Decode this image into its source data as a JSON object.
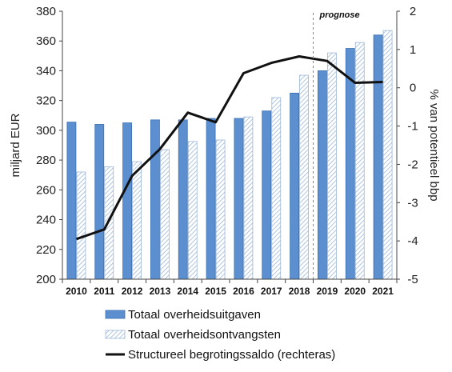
{
  "chart_data": {
    "type": "bar",
    "categories": [
      "2010",
      "2011",
      "2012",
      "2013",
      "2014",
      "2015",
      "2016",
      "2017",
      "2018",
      "2019",
      "2020",
      "2021"
    ],
    "ylabel": "miljard EUR",
    "y2label": "% van potentieel bbp",
    "ylim": [
      200,
      380
    ],
    "y2lim": [
      -5,
      2
    ],
    "yticks": [
      200,
      220,
      240,
      260,
      280,
      300,
      320,
      340,
      360,
      380
    ],
    "y2ticks": [
      -5,
      -4,
      -3,
      -2,
      -1,
      0,
      1,
      2
    ],
    "annotation": "prognose",
    "forecast_start": "2019",
    "series": [
      {
        "name": "Totaal overheidsuitgaven",
        "kind": "bar",
        "style": "solid",
        "color": "#5b8fcf",
        "values": [
          305.5,
          304,
          305,
          307,
          307,
          308,
          308,
          313,
          325,
          340,
          355,
          364
        ]
      },
      {
        "name": "Totaal overheidsontvangsten",
        "kind": "bar",
        "style": "hatched",
        "color": "#9ab6d8",
        "values": [
          272,
          275.5,
          279,
          287,
          292.5,
          293.5,
          309,
          322,
          337,
          352,
          359,
          367
        ]
      },
      {
        "name": "Structureel begrotingssaldo (rechteras)",
        "kind": "line",
        "axis": "right",
        "color": "#111111",
        "values": [
          -3.95,
          -3.7,
          -2.3,
          -1.6,
          -0.65,
          -0.9,
          0.38,
          0.65,
          0.82,
          0.7,
          0.13,
          0.15
        ]
      }
    ],
    "grid": false,
    "legend": "bottom"
  }
}
